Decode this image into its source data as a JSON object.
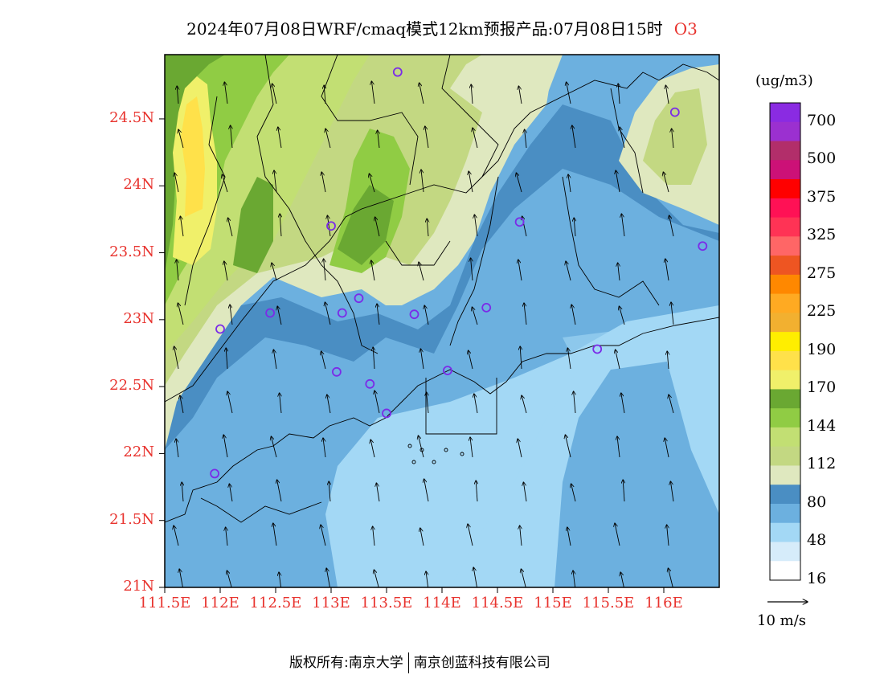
{
  "title": {
    "text": "2024年07月08日WRF/cmaq模式12km预报产品:07月08日15时",
    "species": "O3"
  },
  "map": {
    "lat_labels": [
      "24.5N",
      "24N",
      "23.5N",
      "23N",
      "22.5N",
      "22N",
      "21.5N",
      "21N"
    ],
    "lon_labels": [
      "111.5E",
      "112E",
      "112.5E",
      "113E",
      "113.5E",
      "114E",
      "114.5E",
      "115E",
      "115.5E",
      "116E"
    ],
    "lat_values": [
      24.5,
      24,
      23.5,
      23,
      22.5,
      22,
      21.5,
      21
    ],
    "lon_values": [
      111.5,
      112,
      112.5,
      113,
      113.5,
      114,
      114.5,
      115,
      115.5,
      116
    ],
    "lat_range": [
      21,
      24.98
    ],
    "lon_range": [
      111.5,
      116.5
    ],
    "stations": [
      {
        "lon": 113.6,
        "lat": 24.85
      },
      {
        "lon": 116.1,
        "lat": 24.55
      },
      {
        "lon": 113.0,
        "lat": 23.7
      },
      {
        "lon": 114.7,
        "lat": 23.73
      },
      {
        "lon": 116.35,
        "lat": 23.55
      },
      {
        "lon": 113.25,
        "lat": 23.16
      },
      {
        "lon": 112.45,
        "lat": 23.05
      },
      {
        "lon": 113.1,
        "lat": 23.05
      },
      {
        "lon": 113.75,
        "lat": 23.04
      },
      {
        "lon": 114.4,
        "lat": 23.09
      },
      {
        "lon": 112.0,
        "lat": 22.93
      },
      {
        "lon": 115.4,
        "lat": 22.78
      },
      {
        "lon": 113.05,
        "lat": 22.61
      },
      {
        "lon": 113.35,
        "lat": 22.52
      },
      {
        "lon": 114.05,
        "lat": 22.62
      },
      {
        "lon": 113.5,
        "lat": 22.3
      },
      {
        "lon": 111.95,
        "lat": 21.85
      }
    ]
  },
  "legend": {
    "unit": "(ug/m3)",
    "labels": [
      "700",
      "500",
      "375",
      "325",
      "275",
      "225",
      "190",
      "170",
      "144",
      "112",
      "80",
      "48",
      "16"
    ],
    "colors": [
      "#8a2be2",
      "#9b30d0",
      "#b22e6a",
      "#cc1177",
      "#ff0000",
      "#ff1155",
      "#ff3355",
      "#ff6666",
      "#ee5522",
      "#ff8800",
      "#ffaa22",
      "#f2b030",
      "#ffee00",
      "#ffe14a",
      "#f0f06a",
      "#6aa832",
      "#90cc44",
      "#c2df73",
      "#c3d882",
      "#dfe8bf",
      "#4a8ec3",
      "#6cb0df",
      "#a3d8f5",
      "#d6ecfa",
      "#ffffff"
    ]
  },
  "wind_vector": {
    "label": "10 m/s"
  },
  "footer": {
    "left": "版权所有:南京大学",
    "right": "南京创蓝科技有限公司"
  }
}
